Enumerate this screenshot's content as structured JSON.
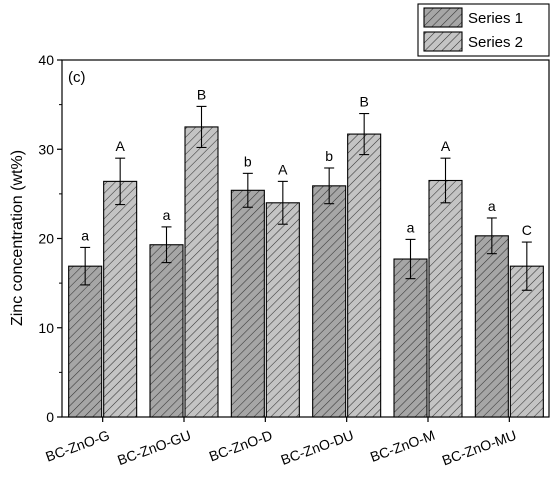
{
  "chart_data": {
    "type": "bar",
    "panel_label": "(c)",
    "title": "",
    "xlabel": "",
    "ylabel": "Zinc concentration (wt%)",
    "ylim": [
      0,
      40
    ],
    "yticks": [
      0,
      10,
      20,
      30,
      40
    ],
    "grid": false,
    "legend_position": "top-right",
    "categories": [
      "BC-ZnO-G",
      "BC-ZnO-GU",
      "BC-ZnO-D",
      "BC-ZnO-DU",
      "BC-ZnO-M",
      "BC-ZnO-MU"
    ],
    "series": [
      {
        "name": "Series 1",
        "fill_color": "#a6a6a6",
        "values": [
          16.9,
          19.3,
          25.4,
          25.9,
          17.7,
          20.3
        ],
        "error": [
          2.1,
          2.0,
          1.9,
          2.0,
          2.2,
          2.0
        ],
        "letters": [
          "a",
          "a",
          "b",
          "b",
          "a",
          "a"
        ]
      },
      {
        "name": "Series 2",
        "fill_color": "#bfbfbf",
        "values": [
          26.4,
          32.5,
          24.0,
          31.7,
          26.5,
          16.9
        ],
        "error": [
          2.6,
          2.3,
          2.4,
          2.3,
          2.5,
          2.7
        ],
        "letters": [
          "A",
          "B",
          "A",
          "B",
          "A",
          "C"
        ]
      }
    ]
  }
}
